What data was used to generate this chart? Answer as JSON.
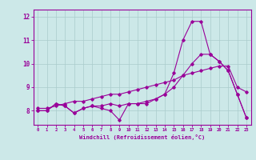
{
  "xlabel": "Windchill (Refroidissement éolien,°C)",
  "ylabel": "",
  "background_color": "#cce8e8",
  "grid_color": "#aacccc",
  "line_color": "#990099",
  "x_ticks": [
    0,
    1,
    2,
    3,
    4,
    5,
    6,
    7,
    8,
    9,
    10,
    11,
    12,
    13,
    14,
    15,
    16,
    17,
    18,
    19,
    20,
    21,
    22,
    23
  ],
  "y_ticks": [
    8,
    9,
    10,
    11,
    12
  ],
  "ylim": [
    7.4,
    12.3
  ],
  "xlim": [
    -0.5,
    23.5
  ],
  "series1": [
    8.0,
    8.0,
    8.3,
    8.2,
    7.9,
    8.1,
    8.2,
    8.1,
    8.0,
    7.6,
    8.3,
    8.3,
    8.3,
    8.5,
    8.7,
    9.6,
    11.0,
    11.8,
    11.8,
    10.4,
    10.1,
    9.7,
    8.7,
    7.7
  ],
  "series2": [
    8.0,
    8.0,
    8.3,
    8.2,
    7.9,
    8.1,
    8.2,
    8.2,
    8.3,
    8.2,
    8.3,
    8.3,
    8.4,
    8.5,
    8.7,
    9.0,
    9.5,
    10.0,
    10.4,
    10.4,
    10.1,
    9.7,
    8.7,
    7.7
  ],
  "series3": [
    8.1,
    8.1,
    8.2,
    8.3,
    8.4,
    8.4,
    8.5,
    8.6,
    8.7,
    8.7,
    8.8,
    8.9,
    9.0,
    9.1,
    9.2,
    9.3,
    9.5,
    9.6,
    9.7,
    9.8,
    9.9,
    9.9,
    9.0,
    8.8
  ]
}
